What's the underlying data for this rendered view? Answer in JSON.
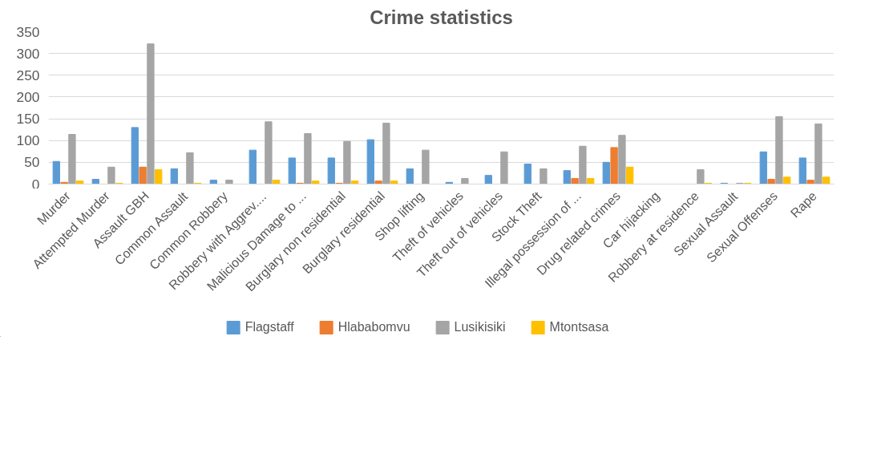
{
  "chart_data": {
    "type": "bar",
    "title": "Crime statistics",
    "categories": [
      "Murder",
      "Attempted Murder",
      "Assault GBH",
      "Common Assault",
      "Common Robbery",
      "Robbery with Aggrev....",
      "Malicious Damage to ...",
      "Burglary non residential",
      "Burglary residential",
      "Shop lifting",
      "Theft of vehicles",
      "Theft out of vehicles",
      "Stock Theft",
      "Illegal possession of ...",
      "Drug related crimes",
      "Car hijacking",
      "Robbery at residence",
      "Sexual Assault",
      "Sexual Offenses",
      "Rape"
    ],
    "series": [
      {
        "name": "Flagstaff",
        "color": "#5b9bd5",
        "values": [
          52,
          11,
          130,
          35,
          9,
          78,
          60,
          60,
          102,
          35,
          4,
          20,
          46,
          31,
          50,
          null,
          null,
          2,
          74,
          60
        ]
      },
      {
        "name": "Hlababomvu",
        "color": "#ed7d31",
        "values": [
          4,
          null,
          39,
          null,
          null,
          null,
          2,
          2,
          7,
          null,
          null,
          null,
          null,
          13,
          84,
          null,
          null,
          null,
          11,
          9
        ]
      },
      {
        "name": "Lusikisiki",
        "color": "#a5a5a5",
        "values": [
          114,
          39,
          322,
          72,
          9,
          143,
          116,
          98,
          140,
          78,
          13,
          74,
          35,
          87,
          112,
          null,
          33,
          2,
          155,
          138
        ]
      },
      {
        "name": "Mtontsasa",
        "color": "#ffc000",
        "values": [
          7,
          2,
          33,
          2,
          null,
          9,
          7,
          7,
          7,
          null,
          null,
          null,
          null,
          13,
          39,
          null,
          2,
          2,
          16,
          16
        ]
      }
    ],
    "ylim": [
      0,
      350
    ],
    "yticks": [
      0,
      50,
      100,
      150,
      200,
      250,
      300,
      350
    ],
    "grid": "y",
    "legend": "bottom"
  }
}
